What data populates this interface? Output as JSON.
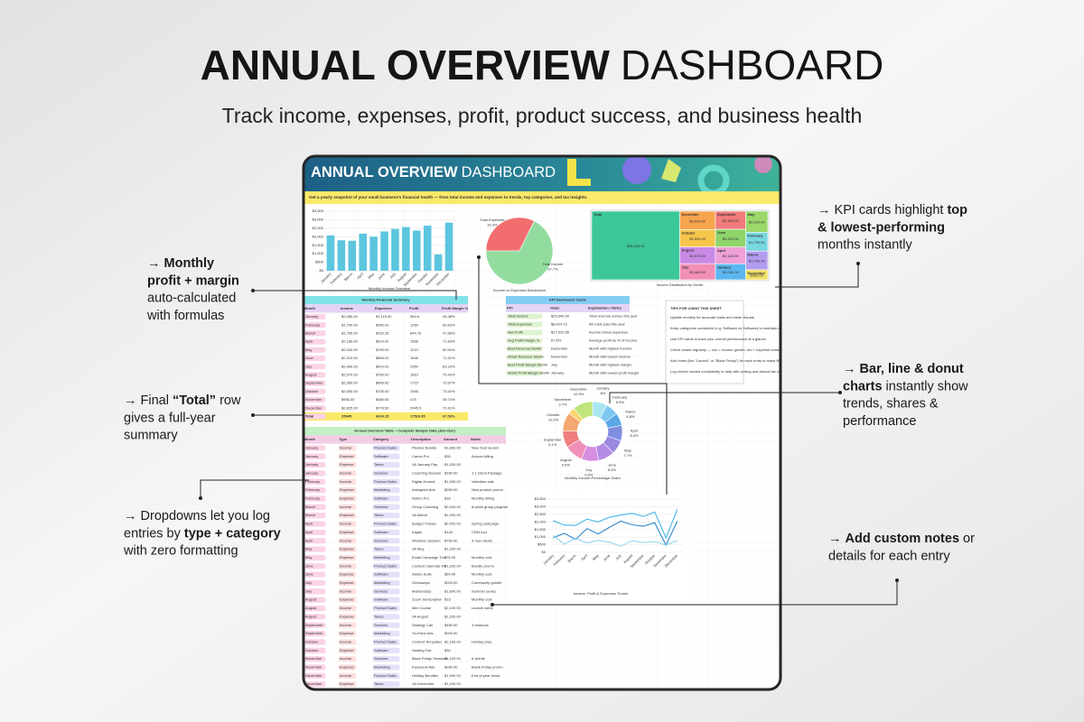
{
  "header": {
    "title_bold": "ANNUAL OVERVIEW",
    "title_light": "DASHBOARD",
    "subtitle": "Track income, expenses, profit, product success, and business health"
  },
  "callouts": [
    {
      "lines": [
        [
          {
            "text": "→ "
          },
          {
            "text": "Monthly",
            "bold": true
          }
        ],
        [
          {
            "text": "profit + margin",
            "bold": true
          }
        ],
        [
          {
            "text": "auto-calculated"
          }
        ],
        [
          {
            "text": "with formulas"
          }
        ]
      ]
    },
    {
      "lines": [
        [
          {
            "text": "→ Final "
          },
          {
            "text": "“Total”",
            "bold": true
          },
          {
            "text": " row"
          }
        ],
        [
          {
            "text": "gives a full-year"
          }
        ],
        [
          {
            "text": "summary"
          }
        ]
      ]
    },
    {
      "lines": [
        [
          {
            "text": "→ Dropdowns let you log"
          }
        ],
        [
          {
            "text": "entries by "
          },
          {
            "text": "type + category",
            "bold": true
          }
        ],
        [
          {
            "text": "with zero formatting"
          }
        ]
      ]
    },
    {
      "lines": [
        [
          {
            "text": "→ KPI cards highlight "
          },
          {
            "text": "top",
            "bold": true
          }
        ],
        [
          {
            "text": "& lowest-performing",
            "bold": true
          }
        ],
        [
          {
            "text": "months instantly"
          }
        ]
      ]
    },
    {
      "lines": [
        [
          {
            "text": "→ "
          },
          {
            "text": "Bar, line & donut",
            "bold": true
          }
        ],
        [
          {
            "text": "charts",
            "bold": true
          },
          {
            "text": " instantly show"
          }
        ],
        [
          {
            "text": "trends, shares &"
          }
        ],
        [
          {
            "text": "performance"
          }
        ]
      ]
    },
    {
      "lines": [
        [
          {
            "text": "→ "
          },
          {
            "text": "Add custom notes",
            "bold": true
          },
          {
            "text": " or"
          }
        ],
        [
          {
            "text": "details for each entry"
          }
        ]
      ]
    }
  ],
  "sheet": {
    "banner_bold": "ANNUAL OVERVIEW",
    "banner_light": "DASHBOARD",
    "description": "Get a yearly snapshot of your small business's financial health — from total income and expenses to trends, top categories, and tax insights.",
    "bar_chart": {
      "type": "bar",
      "caption": "Monthly Income Overview",
      "categories": [
        "January",
        "February",
        "March",
        "April",
        "May",
        "June",
        "July",
        "August",
        "September",
        "October",
        "November",
        "December"
      ],
      "values": [
        2080,
        1790,
        1765,
        2180,
        2000,
        2310,
        2460,
        2570,
        2360,
        2650,
        955,
        2825
      ],
      "color": "#5cc6df",
      "ylim": [
        0,
        3500
      ],
      "yticks": [
        {
          "value": 0,
          "label": "$0"
        },
        {
          "value": 500,
          "label": "$500"
        },
        {
          "value": 1000,
          "label": "$1,000"
        },
        {
          "value": 1500,
          "label": "$1,500"
        },
        {
          "value": 2000,
          "label": "$2,000"
        },
        {
          "value": 2500,
          "label": "$2,500"
        },
        {
          "value": 3000,
          "label": "$3,000"
        },
        {
          "value": 3500,
          "label": "$3,500"
        }
      ],
      "grid": true
    },
    "pie": {
      "type": "pie",
      "caption": "Income vs Expenses Breakdown",
      "categories": [
        "Total Expenses",
        "Total Income"
      ],
      "values": [
        32.3,
        67.7
      ],
      "value_labels": [
        "32.3%",
        "67.7%"
      ],
      "colors": [
        "#f26d6d",
        "#93dca0"
      ]
    },
    "treemap": {
      "type": "treemap",
      "caption": "Income Distribution by Month",
      "categories": [
        "Total",
        "December",
        "October",
        "August",
        "July",
        "September",
        "June",
        "April",
        "January",
        "May",
        "February",
        "March",
        "November"
      ],
      "values": [
        25945,
        2825,
        2650,
        2570,
        2460,
        2360,
        2310,
        2180,
        2080,
        2000,
        1790,
        1765,
        955
      ],
      "value_labels": [
        "$25,945.00",
        "$2,825.00",
        "$2,650.00",
        "$2,570.00",
        "$2,460.00",
        "$2,360.00",
        "$2,310.00",
        "$2,180.00",
        "$2,080.00",
        "$2,000.00",
        "$1,790.00",
        "$1,765.00",
        "$955.00"
      ],
      "colors": [
        "#3cc79a",
        "#f7a44f",
        "#f5c64a",
        "#c98ae6",
        "#f28fb7",
        "#f27b7b",
        "#8fd46a",
        "#f0a0d8",
        "#5cb7f0",
        "#9ad86a",
        "#79d8e0",
        "#b39cf0",
        "#f3e06a"
      ]
    },
    "summary_table": {
      "title": "Monthly Financial Summary",
      "columns": [
        "Month",
        "Income",
        "Expenses",
        "Profit",
        "Profit Margin %"
      ],
      "rows": [
        [
          "January",
          "$2,080.00",
          "$1,115.40",
          "964.6",
          "46.38%"
        ],
        [
          "February",
          "$1,790.00",
          "$540.00",
          "1250",
          "69.83%"
        ],
        [
          "March",
          "$1,765.00",
          "$920.25",
          "844.75",
          "47.86%"
        ],
        [
          "April",
          "$2,180.00",
          "$614.00",
          "1566",
          "71.83%"
        ],
        [
          "May",
          "$2,000.00",
          "$790.00",
          "1210",
          "60.50%"
        ],
        [
          "June",
          "$2,310.00",
          "$665.00",
          "1645",
          "71.21%"
        ],
        [
          "July",
          "$2,460.00",
          "$410.00",
          "2050",
          "83.33%"
        ],
        [
          "August",
          "$2,570.00",
          "$760.00",
          "1810",
          "70.43%"
        ],
        [
          "September",
          "$2,360.00",
          "$645.00",
          "1715",
          "72.67%"
        ],
        [
          "October",
          "$2,650.00",
          "$705.00",
          "1945",
          "73.40%"
        ],
        [
          "November",
          "$955.00",
          "$480.00",
          "475",
          "49.74%"
        ],
        [
          "December",
          "$2,825.00",
          "$779.50",
          "2045.5",
          "72.41%"
        ]
      ],
      "total_row": [
        "Total",
        "25945",
        "8424.15",
        "17520.85",
        "67.53%"
      ]
    },
    "kpi_table": {
      "title": "KPI Dashboard Cards",
      "columns": [
        "KPI",
        "Value",
        "Explanation / Notes"
      ],
      "rows": [
        [
          "Total Income",
          "$25,945.00",
          "Total revenue earned this year"
        ],
        [
          "Total Expenses",
          "$8,424.15",
          "All costs paid this year"
        ],
        [
          "Net Profit",
          "$17,520.85",
          "Income minus expenses"
        ],
        [
          "Avg Profit Margin %",
          "67.5%",
          "Average profit as % of income"
        ],
        [
          "Best Revenue Month",
          "December",
          "Month with highest income"
        ],
        [
          "Worst Revenue Month",
          "November",
          "Month with lowest income"
        ],
        [
          "Best Profit Margin Month",
          "July",
          "Month with highest margin"
        ],
        [
          "Worst Profit Margin Month",
          "January",
          "Month with lowest profit margin"
        ]
      ]
    },
    "tips": {
      "title": "TIPS FOR USING THIS SHEET",
      "items": [
        "Update monthly for accurate totals and clean visuals.",
        "Keep categories consistent (e.g. Software vs Software) to maintain clean summaries and visuals.",
        "Use KPI cards to track your overall performance at a glance.",
        "Check charts regularly — low = income growth, red = expense breakdown, purple = category weight.",
        "Add notes (like \"Launch\" or \"Black Friday\") for each entry to make filtering and review easier.",
        "Log vendor names consistently to help with sorting and annual tax reports."
      ]
    },
    "donut": {
      "type": "donut",
      "caption": "Monthly Income Percentage Share",
      "categories": [
        "January",
        "February",
        "March",
        "April",
        "May",
        "June",
        "July",
        "August",
        "September",
        "October",
        "November",
        "December"
      ],
      "values": [
        8,
        6.9,
        6.8,
        8.4,
        7.7,
        8.9,
        9.5,
        9.9,
        9.1,
        10.2,
        3.7,
        10.9
      ],
      "value_labels": [
        "8%",
        "6.9%",
        "6.8%",
        "8.4%",
        "7.7%",
        "8.9%",
        "9.5%",
        "9.9%",
        "9.1%",
        "10.2%",
        "3.7%",
        "10.9%"
      ],
      "colors": [
        "#a8e6f0",
        "#7cc8f0",
        "#5aa8e8",
        "#7f8ee0",
        "#9b87e0",
        "#b48ce6",
        "#d68ee0",
        "#f08fb8",
        "#f07f7f",
        "#f5a870",
        "#f8d56a",
        "#bfe57a"
      ]
    },
    "line_chart": {
      "type": "line",
      "caption": "Income, Profit & Expenses Trends",
      "categories": [
        "January",
        "February",
        "March",
        "April",
        "May",
        "June",
        "July",
        "August",
        "September",
        "October",
        "November",
        "December"
      ],
      "series": [
        {
          "color": "#47b6e6",
          "values": [
            2080,
            1790,
            1765,
            2180,
            2000,
            2310,
            2460,
            2570,
            2360,
            2650,
            955,
            2825
          ]
        },
        {
          "color": "#2f86c8",
          "values": [
            964.6,
            1250,
            844.75,
            1566,
            1210,
            1645,
            2050,
            1810,
            1715,
            1945,
            475,
            2045.5
          ]
        },
        {
          "color": "#8fd6ef",
          "values": [
            1115.4,
            540,
            920.25,
            614,
            790,
            665,
            410,
            760,
            645,
            705,
            480,
            779.5
          ]
        }
      ],
      "ylim": [
        0,
        3500
      ],
      "yticks": [
        {
          "value": 0,
          "label": "$0"
        },
        {
          "value": 500,
          "label": "$500"
        },
        {
          "value": 1000,
          "label": "$1,000"
        },
        {
          "value": 1500,
          "label": "$1,500"
        },
        {
          "value": 2000,
          "label": "$2,000"
        },
        {
          "value": 2500,
          "label": "$2,500"
        },
        {
          "value": 3000,
          "label": "$3,000"
        },
        {
          "value": 3500,
          "label": "$3,500"
        }
      ],
      "grid": true
    },
    "annual_table": {
      "title": "Annual Overview Table – Complete Sample Data (Jan–Dec)",
      "columns": [
        "Month",
        "Type",
        "Category",
        "Description",
        "Amount",
        "Notes"
      ],
      "rows": [
        [
          "January",
          "Income",
          "Product Sales",
          "Planner Bundle",
          "$1,800.00",
          "New Year launch"
        ],
        [
          "January",
          "Expense",
          "Software",
          "Canva Pro",
          "$30",
          "Annual billing"
        ],
        [
          "January",
          "Expense",
          "Taxes",
          "VA January Pay",
          "$1,200.00",
          ""
        ],
        [
          "January",
          "Income",
          "Services",
          "Coaching Session",
          "$150.00",
          "1:1 Client Package"
        ],
        [
          "February",
          "Income",
          "Product Sales",
          "Digital Journal",
          "$1,300.00",
          "Valentine sale"
        ],
        [
          "February",
          "Expense",
          "Marketing",
          "Instagram Ads",
          "$250.00",
          "New product promo"
        ],
        [
          "February",
          "Expense",
          "Software",
          "Notion Pro",
          "$16",
          "Monthly billing"
        ],
        [
          "March",
          "Income",
          "Services",
          "Group Coaching",
          "$2,000.00",
          "8-week group program"
        ],
        [
          "March",
          "Expense",
          "Taxes",
          "VA March",
          "$1,200.00",
          ""
        ],
        [
          "April",
          "Income",
          "Product Sales",
          "Budget Tracker",
          "$2,000.00",
          "Spring campaign"
        ],
        [
          "April",
          "Expense",
          "Software",
          "Kajabi",
          "$149",
          "CRM tool"
        ],
        [
          "April",
          "Income",
          "Services",
          "Wellness Session",
          "$750.00",
          "3 new clients"
        ],
        [
          "May",
          "Expense",
          "Taxes",
          "VA May",
          "$1,200.00",
          ""
        ],
        [
          "May",
          "Expense",
          "Marketing",
          "Email Campaign Tool",
          "$75.00",
          "Monthly cost"
        ],
        [
          "June",
          "Income",
          "Product Sales",
          "Content Calendar Kit",
          "$1,320.00",
          "Bundle promo"
        ],
        [
          "June",
          "Expense",
          "Software",
          "Adobe Suite",
          "$54.99",
          "Monthly cost"
        ],
        [
          "July",
          "Expense",
          "Marketing",
          "Giveaways",
          "$200.00",
          "Community growth"
        ],
        [
          "July",
          "Income",
          "Services",
          "Masterclass",
          "$1,800.00",
          "Summer series"
        ],
        [
          "August",
          "Expense",
          "Software",
          "Zoom Subscription",
          "$15",
          "Monthly cost"
        ],
        [
          "August",
          "Income",
          "Product Sales",
          "Mini Course",
          "$2,100.00",
          "Launch week"
        ],
        [
          "August",
          "Expense",
          "Taxes",
          "VA August",
          "$1,200.00",
          ""
        ],
        [
          "September",
          "Income",
          "Services",
          "Strategy Call",
          "$450.00",
          "3 sessions"
        ],
        [
          "September",
          "Expense",
          "Marketing",
          "YouTube Ads",
          "$200.00",
          ""
        ],
        [
          "October",
          "Income",
          "Product Sales",
          "Content Templates",
          "$2,100.00",
          "Holiday prep"
        ],
        [
          "October",
          "Expense",
          "Software",
          "Hosting Fee",
          "$30",
          ""
        ],
        [
          "November",
          "Income",
          "Services",
          "Black Friday Sessions",
          "$1,100.00",
          "6 clients"
        ],
        [
          "November",
          "Expense",
          "Marketing",
          "Facebook Ads",
          "$280.00",
          "Black Friday promo"
        ],
        [
          "December",
          "Income",
          "Product Sales",
          "Holiday Bundles",
          "$1,900.00",
          "End of year boost"
        ],
        [
          "December",
          "Expense",
          "Taxes",
          "VA December",
          "$1,200.00",
          ""
        ]
      ]
    }
  }
}
